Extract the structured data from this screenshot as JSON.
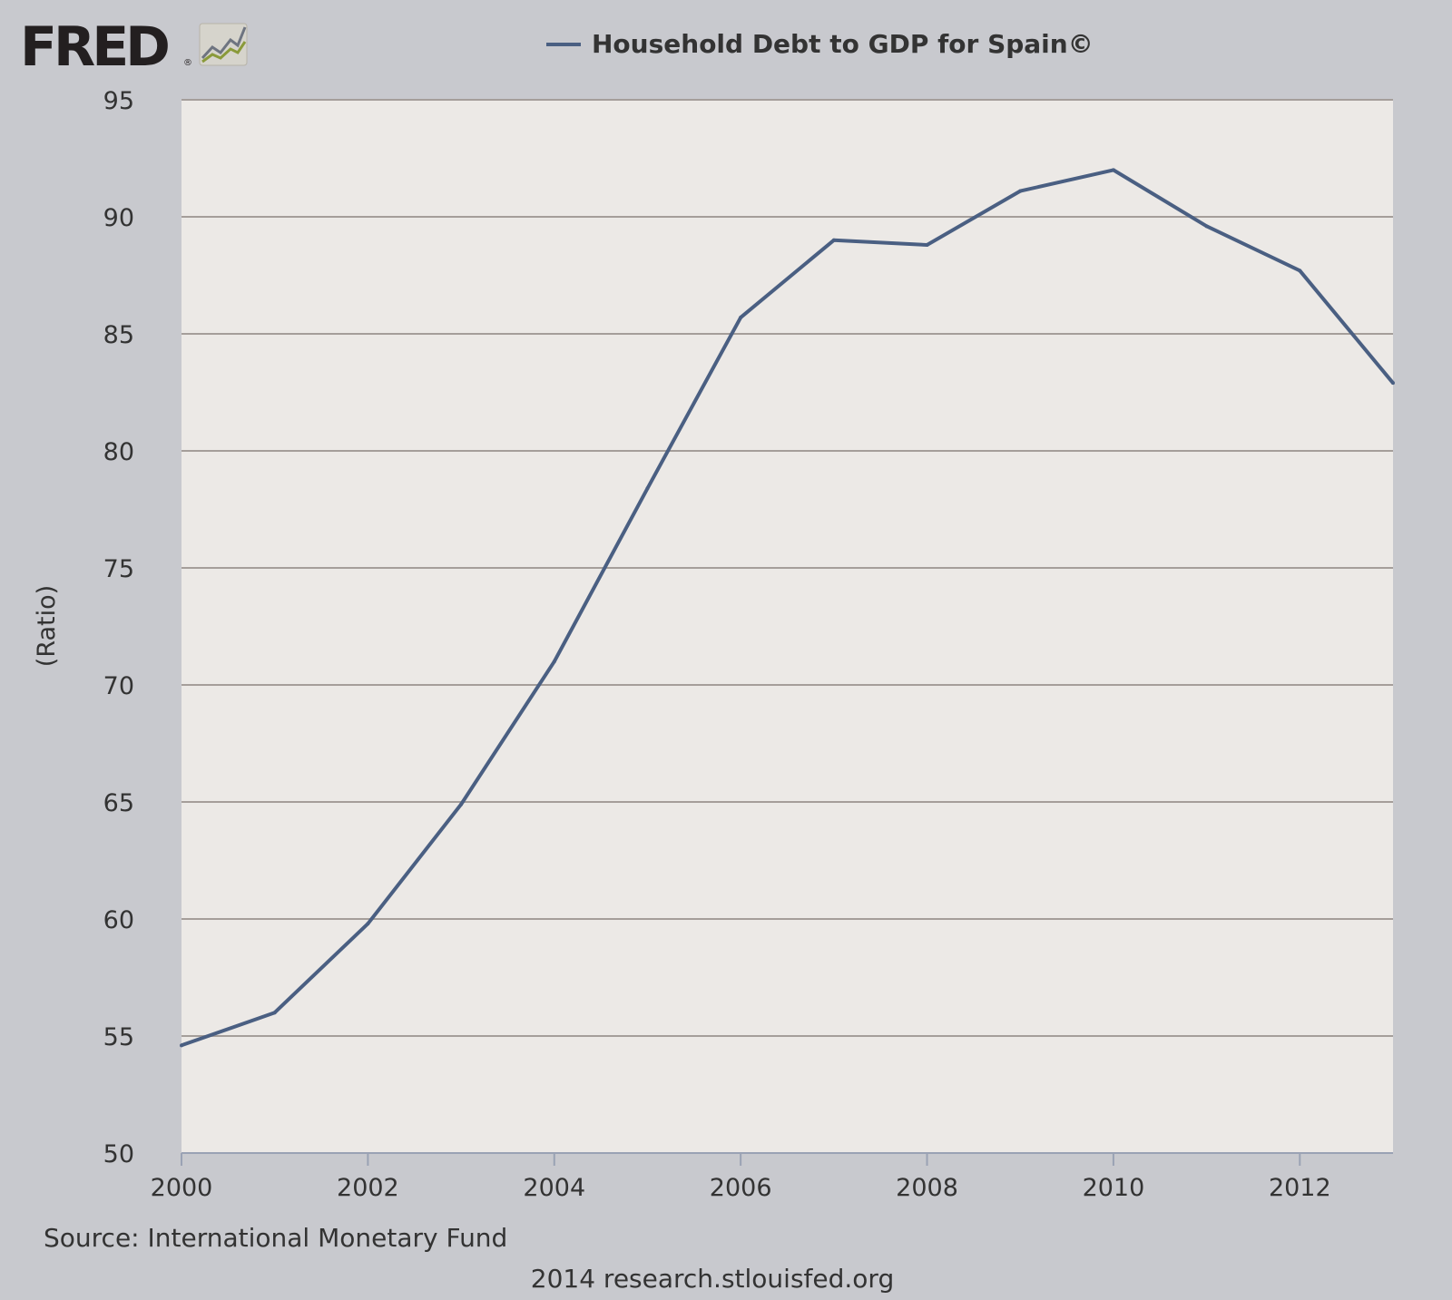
{
  "logo": {
    "text": "FRED",
    "mark": "®",
    "icon": "fred-chart-icon"
  },
  "chart_data": {
    "type": "line",
    "title": "Household Debt to GDP for Spain©",
    "xlabel": "",
    "ylabel": "(Ratio)",
    "xlim": [
      2000,
      2013
    ],
    "ylim": [
      50,
      95
    ],
    "yticks": [
      50,
      55,
      60,
      65,
      70,
      75,
      80,
      85,
      90,
      95
    ],
    "xticks": [
      2000,
      2002,
      2004,
      2006,
      2008,
      2010,
      2012
    ],
    "grid": true,
    "legend_position": "top",
    "series": [
      {
        "name": "Household Debt to GDP for Spain©",
        "color": "#4a5f82",
        "x": [
          2000,
          2001,
          2002,
          2003,
          2004,
          2005,
          2006,
          2007,
          2008,
          2009,
          2010,
          2011,
          2012,
          2013
        ],
        "y": [
          54.6,
          56.0,
          59.8,
          64.9,
          71.0,
          78.4,
          85.7,
          89.0,
          88.8,
          91.1,
          92.0,
          89.6,
          87.7,
          82.9
        ]
      }
    ]
  },
  "footer": {
    "source": "Source: International Monetary Fund",
    "credit": "2014 research.stlouisfed.org"
  }
}
